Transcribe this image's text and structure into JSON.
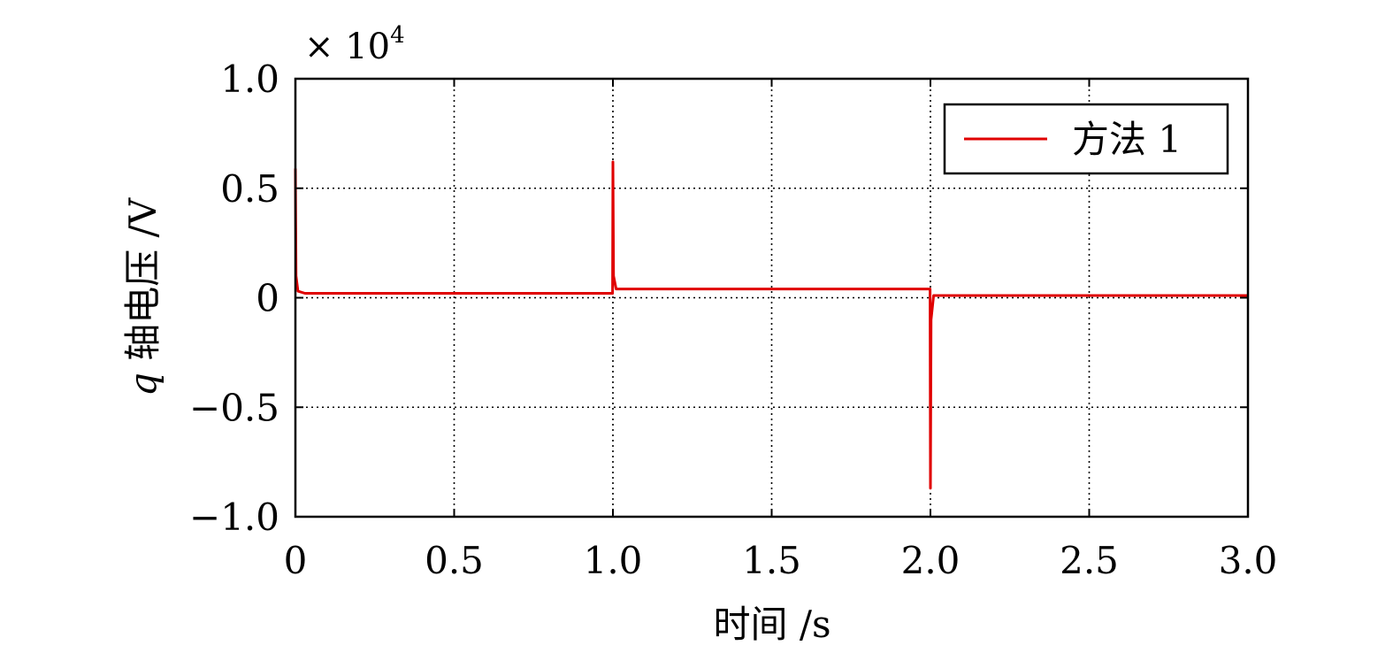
{
  "chart_data": {
    "type": "line",
    "xlabel": "时间 /s",
    "ylabel_italic": "q",
    "ylabel_rest": " 轴电压 /V",
    "y_multiplier_times": "× 10",
    "y_multiplier_exp": "4",
    "xlim": [
      0,
      3.0
    ],
    "ylim": [
      -1.0,
      1.0
    ],
    "xticks": [
      0,
      0.5,
      1.0,
      1.5,
      2.0,
      2.5,
      3.0
    ],
    "xtick_labels": [
      "0",
      "0.5",
      "1.0",
      "1.5",
      "2.0",
      "2.5",
      "3.0"
    ],
    "yticks": [
      1.0,
      0.5,
      0,
      -0.5,
      -1.0
    ],
    "ytick_labels": [
      "1.0",
      "0.5",
      "0",
      "−0.5",
      "−1.0"
    ],
    "grid": true,
    "legend_position": "top-right",
    "series": [
      {
        "name": "方法 1",
        "color": "#e00000",
        "x": [
          0,
          0.002,
          0.008,
          0.03,
          0.2,
          0.6,
          0.999,
          1.0,
          1.002,
          1.01,
          1.03,
          1.5,
          1.999,
          2.0,
          2.002,
          2.01,
          2.03,
          2.5,
          3.0
        ],
        "y": [
          0.59,
          0.1,
          0.03,
          0.02,
          0.02,
          0.02,
          0.02,
          0.62,
          0.1,
          0.04,
          0.04,
          0.04,
          0.04,
          -0.87,
          -0.1,
          0.01,
          0.01,
          0.01,
          0.01
        ]
      }
    ]
  }
}
